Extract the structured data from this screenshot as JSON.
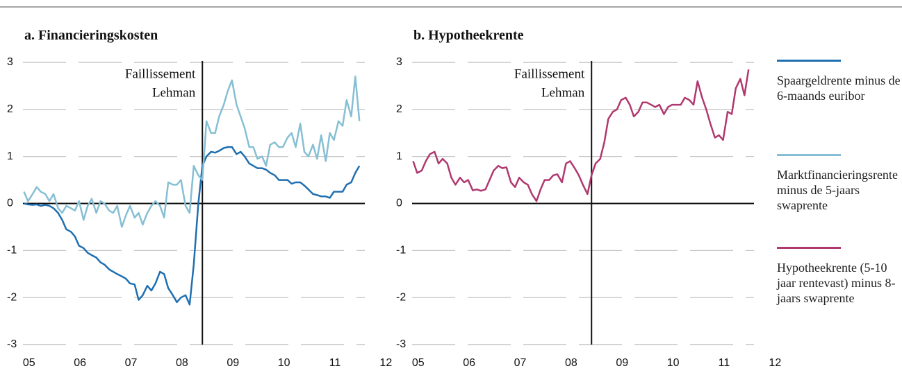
{
  "chart_data": [
    {
      "type": "line",
      "title": "a. Financieringskosten",
      "x": [
        2004.9,
        2004.98,
        2005.07,
        2005.15,
        2005.23,
        2005.32,
        2005.4,
        2005.48,
        2005.57,
        2005.65,
        2005.73,
        2005.82,
        2005.9,
        2005.98,
        2006.07,
        2006.15,
        2006.23,
        2006.32,
        2006.4,
        2006.48,
        2006.57,
        2006.65,
        2006.73,
        2006.82,
        2006.9,
        2006.98,
        2007.07,
        2007.15,
        2007.23,
        2007.32,
        2007.4,
        2007.48,
        2007.57,
        2007.65,
        2007.73,
        2007.82,
        2007.9,
        2007.98,
        2008.07,
        2008.15,
        2008.23,
        2008.32,
        2008.4,
        2008.48,
        2008.57,
        2008.65,
        2008.73,
        2008.82,
        2008.9,
        2008.98,
        2009.07,
        2009.15,
        2009.23,
        2009.32,
        2009.4,
        2009.48,
        2009.57,
        2009.65,
        2009.73,
        2009.82,
        2009.9,
        2009.98,
        2010.07,
        2010.15,
        2010.23,
        2010.32,
        2010.4,
        2010.48,
        2010.57,
        2010.65,
        2010.73,
        2010.82,
        2010.9,
        2010.98,
        2011.07,
        2011.15,
        2011.23,
        2011.32,
        2011.4,
        2011.48
      ],
      "series": [
        {
          "name": "Spaargeldrente minus de 6-maands euribor",
          "color": "#1f6fb0",
          "values": [
            0,
            -0.02,
            -0.03,
            -0.02,
            -0.05,
            -0.03,
            -0.05,
            -0.1,
            -0.2,
            -0.35,
            -0.55,
            -0.6,
            -0.7,
            -0.9,
            -0.95,
            -1.05,
            -1.1,
            -1.15,
            -1.25,
            -1.3,
            -1.4,
            -1.45,
            -1.5,
            -1.55,
            -1.6,
            -1.7,
            -1.72,
            -2.05,
            -1.95,
            -1.75,
            -1.85,
            -1.7,
            -1.45,
            -1.5,
            -1.8,
            -1.95,
            -2.1,
            -2.0,
            -1.95,
            -2.15,
            -1.3,
            0.0,
            0.8,
            1.0,
            1.1,
            1.08,
            1.12,
            1.18,
            1.2,
            1.2,
            1.05,
            1.1,
            1.0,
            0.85,
            0.8,
            0.75,
            0.75,
            0.72,
            0.65,
            0.6,
            0.5,
            0.5,
            0.5,
            0.42,
            0.45,
            0.45,
            0.38,
            0.3,
            0.2,
            0.18,
            0.15,
            0.15,
            0.12,
            0.25,
            0.25,
            0.25,
            0.4,
            0.45,
            0.65,
            0.8
          ]
        },
        {
          "name": "Marktfinancieringsrente minus de 5-jaars swaprente",
          "color": "#86bfd3",
          "values": [
            0.25,
            0.05,
            0.2,
            0.35,
            0.25,
            0.2,
            0.05,
            0.2,
            -0.1,
            -0.2,
            -0.05,
            -0.1,
            -0.15,
            0.05,
            -0.35,
            -0.05,
            0.1,
            -0.2,
            0.05,
            0.0,
            -0.15,
            -0.2,
            -0.05,
            -0.5,
            -0.25,
            -0.05,
            -0.3,
            -0.2,
            -0.45,
            -0.2,
            -0.05,
            0.05,
            -0.05,
            -0.3,
            0.45,
            0.4,
            0.4,
            0.5,
            -0.05,
            -0.2,
            0.8,
            0.6,
            0.5,
            1.75,
            1.5,
            1.5,
            1.85,
            2.1,
            2.4,
            2.62,
            2.1,
            1.85,
            1.6,
            1.2,
            1.2,
            0.95,
            1.0,
            0.8,
            1.25,
            1.3,
            1.2,
            1.2,
            1.4,
            1.5,
            1.2,
            1.7,
            1.1,
            1.0,
            1.25,
            0.95,
            1.45,
            0.9,
            1.5,
            1.35,
            1.75,
            1.65,
            2.2,
            1.85,
            2.7,
            1.75
          ]
        }
      ],
      "xlim": [
        2004.88,
        2012.2
      ],
      "xticks": [
        {
          "value": 2005,
          "label": "05"
        },
        {
          "value": 2006,
          "label": "06"
        },
        {
          "value": 2007,
          "label": "07"
        },
        {
          "value": 2008,
          "label": "08"
        },
        {
          "value": 2009,
          "label": "09"
        },
        {
          "value": 2010,
          "label": "10"
        },
        {
          "value": 2011,
          "label": "11"
        },
        {
          "value": 2012,
          "label": "12"
        }
      ],
      "ylim": [
        -3,
        3
      ],
      "yticks": [
        -3,
        -2,
        -1,
        0,
        1,
        2,
        3
      ],
      "grid": true,
      "vline": 2008.4,
      "annotation": [
        "Faillissement",
        "Lehman"
      ],
      "legend": "right"
    },
    {
      "type": "line",
      "title": "b. Hypotheekrente",
      "x": [
        2004.9,
        2004.98,
        2005.07,
        2005.15,
        2005.23,
        2005.32,
        2005.4,
        2005.48,
        2005.57,
        2005.65,
        2005.73,
        2005.82,
        2005.9,
        2005.98,
        2006.07,
        2006.15,
        2006.23,
        2006.32,
        2006.4,
        2006.48,
        2006.57,
        2006.65,
        2006.73,
        2006.82,
        2006.9,
        2006.98,
        2007.07,
        2007.15,
        2007.23,
        2007.32,
        2007.4,
        2007.48,
        2007.57,
        2007.65,
        2007.73,
        2007.82,
        2007.9,
        2007.98,
        2008.07,
        2008.15,
        2008.23,
        2008.32,
        2008.4,
        2008.48,
        2008.57,
        2008.65,
        2008.73,
        2008.82,
        2008.9,
        2008.98,
        2009.07,
        2009.15,
        2009.23,
        2009.32,
        2009.4,
        2009.48,
        2009.57,
        2009.65,
        2009.73,
        2009.82,
        2009.9,
        2009.98,
        2010.07,
        2010.15,
        2010.23,
        2010.32,
        2010.4,
        2010.48,
        2010.57,
        2010.65,
        2010.73,
        2010.82,
        2010.9,
        2010.98,
        2011.07,
        2011.15,
        2011.23,
        2011.32,
        2011.4,
        2011.48
      ],
      "series": [
        {
          "name": "Hypotheekrente (5-10 jaar rentevast) minus 8-jaars swaprente",
          "color": "#b0386e",
          "values": [
            0.9,
            0.65,
            0.7,
            0.9,
            1.05,
            1.1,
            0.85,
            0.95,
            0.85,
            0.55,
            0.4,
            0.55,
            0.45,
            0.5,
            0.28,
            0.3,
            0.27,
            0.3,
            0.5,
            0.7,
            0.8,
            0.75,
            0.77,
            0.45,
            0.35,
            0.55,
            0.45,
            0.4,
            0.2,
            0.05,
            0.3,
            0.5,
            0.5,
            0.6,
            0.62,
            0.45,
            0.85,
            0.9,
            0.75,
            0.6,
            0.4,
            0.2,
            0.6,
            0.85,
            0.95,
            1.3,
            1.8,
            1.95,
            2.0,
            2.2,
            2.25,
            2.1,
            1.85,
            1.95,
            2.15,
            2.15,
            2.1,
            2.05,
            2.1,
            1.9,
            2.05,
            2.1,
            2.1,
            2.1,
            2.25,
            2.2,
            2.1,
            2.6,
            2.25,
            2.0,
            1.7,
            1.4,
            1.45,
            1.35,
            1.95,
            1.9,
            2.45,
            2.65,
            2.3,
            2.85
          ]
        }
      ],
      "xlim": [
        2004.88,
        2012.2
      ],
      "xticks": [
        {
          "value": 2005,
          "label": "05"
        },
        {
          "value": 2006,
          "label": "06"
        },
        {
          "value": 2007,
          "label": "07"
        },
        {
          "value": 2008,
          "label": "08"
        },
        {
          "value": 2009,
          "label": "09"
        },
        {
          "value": 2010,
          "label": "10"
        },
        {
          "value": 2011,
          "label": "11"
        },
        {
          "value": 2012,
          "label": "12"
        }
      ],
      "ylim": [
        -3,
        3
      ],
      "yticks": [
        -3,
        -2,
        -1,
        0,
        1,
        2,
        3
      ],
      "grid": true,
      "vline": 2008.4,
      "annotation": [
        "Faillissement",
        "Lehman"
      ],
      "legend": "right"
    }
  ]
}
